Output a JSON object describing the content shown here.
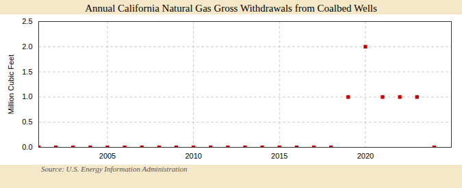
{
  "chart_data": {
    "type": "scatter",
    "title": "Annual California Natural Gas Gross Withdrawals from Coalbed Wells",
    "ylabel": "Million Cubic Feet",
    "annotations": [
      "Source: U.S. Energy Information Administration"
    ],
    "x": [
      2001,
      2002,
      2003,
      2004,
      2005,
      2006,
      2007,
      2008,
      2009,
      2010,
      2011,
      2012,
      2013,
      2014,
      2015,
      2016,
      2017,
      2018,
      2019,
      2020,
      2021,
      2022,
      2023,
      2024
    ],
    "values": [
      0,
      0,
      0,
      0,
      0,
      0,
      0,
      0,
      0,
      0,
      0,
      0,
      0,
      0,
      0,
      0,
      0,
      0,
      1,
      2,
      1,
      1,
      1,
      0
    ],
    "color": "#cc0000",
    "marker": "square",
    "xlim": [
      2001,
      2025
    ],
    "xticks": [
      2005,
      2010,
      2015,
      2020
    ],
    "ylim": [
      0.0,
      2.5
    ],
    "yticks": [
      {
        "value": 0.0,
        "label": "0.0"
      },
      0.5,
      {
        "value": 1.0,
        "label": "1.0"
      },
      1.5,
      {
        "value": 2.0,
        "label": "2.0"
      },
      2.5
    ],
    "grid": true
  }
}
